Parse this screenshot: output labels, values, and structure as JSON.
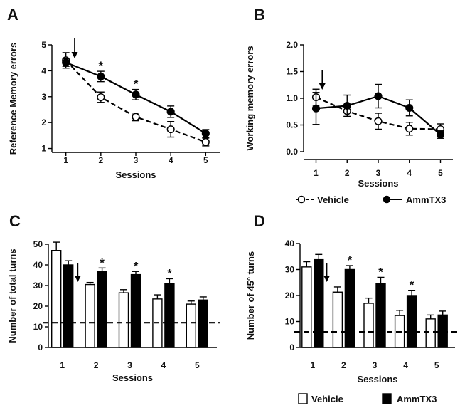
{
  "chart_data": [
    {
      "panel": "A",
      "type": "line",
      "xlabel": "Sessions",
      "ylabel": "Reference Memory errors",
      "x": [
        1,
        2,
        3,
        4,
        5
      ],
      "xlim": [
        0.6,
        5.4
      ],
      "ylim": [
        0.85,
        5
      ],
      "yticks": [
        1,
        2,
        3,
        4,
        5
      ],
      "series": [
        {
          "name": "Vehicle",
          "values": [
            4.4,
            2.98,
            2.22,
            1.74,
            1.25
          ],
          "errors": [
            0.3,
            0.2,
            0.15,
            0.3,
            0.15
          ],
          "style": "dashed-open-circle"
        },
        {
          "name": "AmmTX3",
          "values": [
            4.32,
            3.78,
            3.08,
            2.42,
            1.58
          ],
          "errors": [
            0.15,
            0.2,
            0.2,
            0.22,
            0.15
          ],
          "style": "solid-filled-circle"
        }
      ],
      "significant": [
        2,
        3
      ],
      "arrow_at": 1.25,
      "grid": false
    },
    {
      "panel": "B",
      "type": "line",
      "xlabel": "Sessions",
      "ylabel": "Working memory errors",
      "x": [
        1,
        2,
        3,
        4,
        5
      ],
      "xlim": [
        0.6,
        5.4
      ],
      "ylim": [
        0,
        2
      ],
      "yticks": [
        "0.0",
        "0.5",
        "1.0",
        "1.5",
        "2.0"
      ],
      "series": [
        {
          "name": "Vehicle",
          "values": [
            1.02,
            0.76,
            0.57,
            0.43,
            0.42
          ],
          "errors": [
            0.15,
            0.1,
            0.15,
            0.12,
            0.1
          ],
          "style": "dashed-open-circle"
        },
        {
          "name": "AmmTX3",
          "values": [
            0.81,
            0.86,
            1.04,
            0.82,
            0.32
          ],
          "errors": [
            0.3,
            0.2,
            0.22,
            0.15,
            0.07
          ],
          "style": "solid-filled-circle"
        }
      ],
      "arrow_at": 1.2,
      "legend": {
        "position": "bottom",
        "items": [
          "Vehicle",
          "AmmTX3"
        ]
      },
      "grid": false
    },
    {
      "panel": "C",
      "type": "bar",
      "xlabel": "Sessions",
      "ylabel": "Number of total turns",
      "categories": [
        "1",
        "2",
        "3",
        "4",
        "5"
      ],
      "ylim": [
        0,
        50
      ],
      "yticks": [
        0,
        10,
        20,
        30,
        40,
        50
      ],
      "series": [
        {
          "name": "Vehicle",
          "values": [
            47,
            30.5,
            26.5,
            23.5,
            21
          ],
          "errors": [
            4,
            1,
            1.5,
            2,
            1.5
          ],
          "fill": "#ffffff"
        },
        {
          "name": "AmmTX3",
          "values": [
            40,
            37,
            35.3,
            30.8,
            23
          ],
          "errors": [
            2,
            1.5,
            1.5,
            2.5,
            1.5
          ],
          "fill": "#000000"
        }
      ],
      "significant": [
        "2",
        "3",
        "4"
      ],
      "reference_line": 12,
      "arrow_at": 1.5,
      "grid": false
    },
    {
      "panel": "D",
      "type": "bar",
      "xlabel": "Sessions",
      "ylabel": "Number of 45° turns",
      "categories": [
        "1",
        "2",
        "3",
        "4",
        "5"
      ],
      "ylim": [
        0,
        40
      ],
      "yticks": [
        0,
        10,
        20,
        30,
        40
      ],
      "series": [
        {
          "name": "Vehicle",
          "values": [
            31,
            21.3,
            17,
            12.3,
            11
          ],
          "errors": [
            2,
            2,
            2,
            2,
            1.5
          ],
          "fill": "#ffffff"
        },
        {
          "name": "AmmTX3",
          "values": [
            33.8,
            30,
            24.5,
            20,
            12.5
          ],
          "errors": [
            2,
            1.5,
            2.5,
            2,
            1.5
          ],
          "fill": "#000000"
        }
      ],
      "significant": [
        "2",
        "3",
        "4"
      ],
      "reference_line": 6,
      "arrow_at": 1.5,
      "legend": {
        "position": "bottom",
        "items": [
          "Vehicle",
          "AmmTX3"
        ]
      },
      "grid": false
    }
  ]
}
